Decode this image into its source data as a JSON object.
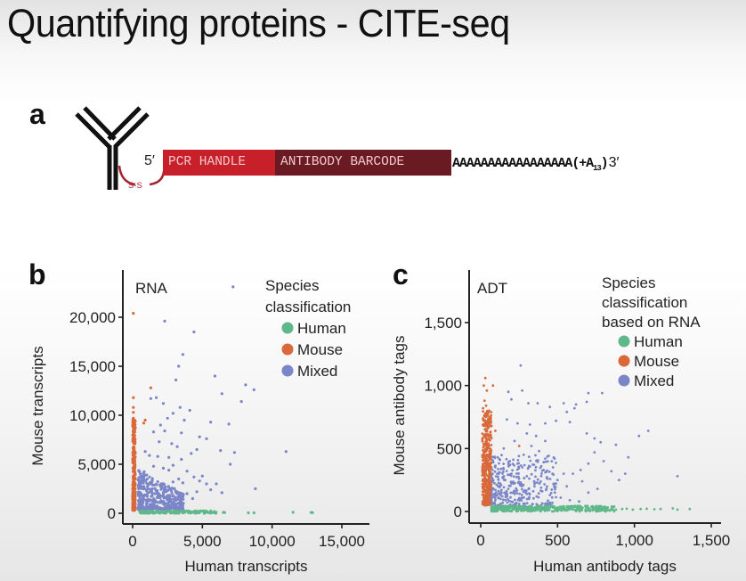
{
  "slide": {
    "title": "Quantifying proteins - CITE-seq"
  },
  "panel_a": {
    "letter": "a",
    "five_prime": "5′",
    "three_prime": "3′",
    "pcr_handle": "PCR HANDLE",
    "antibody_barcode": "ANTIBODY BARCODE",
    "poly_a": "AAAAAAAAAAAAAAAAA",
    "poly_a_extra": "(+A",
    "poly_a_sub": "13",
    "poly_a_close": ")",
    "disulfide": "S-S",
    "icons": [
      "antibody-icon",
      "disulfide-linker-icon"
    ],
    "colors": {
      "pcr_handle": "#c8202b",
      "barcode": "#6a1a22",
      "linker": "#a3242e"
    }
  },
  "chart_data": [
    {
      "type": "scatter",
      "panel_letter": "b",
      "title": "RNA",
      "xlabel": "Human transcripts",
      "ylabel": "Mouse transcripts",
      "xlim": [
        -700,
        16500
      ],
      "ylim": [
        -1200,
        24500
      ],
      "xticks": [
        0,
        5000,
        10000,
        15000
      ],
      "xtick_labels": [
        "0",
        "5,000",
        "10,000",
        "15,000"
      ],
      "yticks": [
        0,
        5000,
        10000,
        15000,
        20000
      ],
      "ytick_labels": [
        "0",
        "5,000",
        "10,000",
        "15,000",
        "20,000"
      ],
      "grid": false,
      "legend": {
        "title": [
          "Species",
          "classification"
        ],
        "position": "top-right",
        "entries": [
          {
            "label": "Human",
            "color": "#5fb88a"
          },
          {
            "label": "Mouse",
            "color": "#d9693a"
          },
          {
            "label": "Mixed",
            "color": "#7a86c8"
          }
        ]
      },
      "series": [
        {
          "name": "Human",
          "color": "#5fb88a",
          "points": [
            [
              11500,
              100
            ],
            [
              12800,
              80
            ],
            [
              12900,
              60
            ],
            [
              8300,
              50
            ],
            [
              8700,
              50
            ],
            [
              6500,
              90
            ],
            [
              6600,
              70
            ],
            [
              5200,
              60
            ],
            [
              5600,
              40
            ],
            [
              4800,
              70
            ]
          ]
        },
        {
          "name": "Mouse",
          "color": "#d9693a",
          "points": [
            [
              50,
              20400
            ],
            [
              1300,
              12800
            ],
            [
              50,
              11800
            ],
            [
              50,
              10800
            ],
            [
              50,
              10300
            ],
            [
              50,
              9700
            ],
            [
              800,
              9200
            ],
            [
              900,
              9500
            ],
            [
              50,
              8900
            ]
          ]
        },
        {
          "name": "Mixed",
          "color": "#7a86c8",
          "points": [
            [
              7200,
              23100
            ],
            [
              2300,
              19600
            ],
            [
              4400,
              18500
            ],
            [
              3600,
              16200
            ],
            [
              3300,
              15000
            ],
            [
              3100,
              13600
            ],
            [
              5900,
              14000
            ],
            [
              8100,
              13100
            ],
            [
              8700,
              12600
            ],
            [
              6400,
              12200
            ],
            [
              7800,
              11400
            ],
            [
              1300,
              11700
            ],
            [
              1700,
              11800
            ],
            [
              2200,
              11200
            ],
            [
              3400,
              10800
            ],
            [
              4100,
              10500
            ],
            [
              2900,
              10200
            ],
            [
              2500,
              9700
            ],
            [
              3700,
              9500
            ],
            [
              5600,
              9300
            ],
            [
              6900,
              9100
            ],
            [
              2000,
              9000
            ],
            [
              1500,
              8300
            ],
            [
              3500,
              8200
            ],
            [
              2300,
              8400
            ],
            [
              4800,
              7800
            ],
            [
              5300,
              7600
            ],
            [
              1900,
              7300
            ],
            [
              2800,
              7100
            ],
            [
              3200,
              6800
            ],
            [
              4600,
              6500
            ],
            [
              6300,
              6400
            ],
            [
              7300,
              6200
            ],
            [
              11000,
              6300
            ],
            [
              900,
              6300
            ],
            [
              1200,
              5900
            ],
            [
              1800,
              5800
            ],
            [
              2600,
              5700
            ],
            [
              3500,
              5500
            ],
            [
              4200,
              6100
            ],
            [
              7000,
              5000
            ],
            [
              2900,
              4900
            ],
            [
              1500,
              4800
            ],
            [
              2200,
              4600
            ],
            [
              2600,
              4400
            ],
            [
              3900,
              4300
            ],
            [
              5000,
              3800
            ],
            [
              4400,
              3700
            ],
            [
              3300,
              3500
            ],
            [
              2900,
              3200
            ],
            [
              3600,
              3100
            ],
            [
              4800,
              3300
            ],
            [
              5300,
              3000
            ],
            [
              6000,
              3000
            ],
            [
              8800,
              2500
            ],
            [
              6400,
              2100
            ],
            [
              5600,
              2400
            ],
            [
              4600,
              2200
            ],
            [
              3900,
              2000
            ],
            [
              3500,
              1700
            ],
            [
              4300,
              1500
            ],
            [
              2600,
              1300
            ],
            [
              1900,
              1100
            ],
            [
              1300,
              900
            ],
            [
              800,
              2600
            ],
            [
              700,
              1800
            ],
            [
              600,
              1200
            ],
            [
              1000,
              2300
            ],
            [
              1600,
              2000
            ],
            [
              2100,
              2800
            ],
            [
              1400,
              3300
            ],
            [
              900,
              3900
            ],
            [
              2400,
              2200
            ],
            [
              3000,
              2500
            ],
            [
              1800,
              1600
            ],
            [
              1100,
              1400
            ],
            [
              700,
              700
            ]
          ]
        }
      ]
    },
    {
      "type": "scatter",
      "panel_letter": "c",
      "title": "ADT",
      "xlabel": "Human antibody tags",
      "ylabel": "Mouse antibody tags",
      "xlim": [
        -45,
        1600
      ],
      "ylim": [
        -45,
        1790
      ],
      "xticks": [
        0,
        500,
        1000,
        1500
      ],
      "xtick_labels": [
        "0",
        "500",
        "1,000",
        "1,500"
      ],
      "yticks": [
        0,
        500,
        1000,
        1500
      ],
      "ytick_labels": [
        "0",
        "500",
        "1,000",
        "1,500"
      ],
      "grid": false,
      "legend": {
        "title": [
          "Species",
          "classification",
          "based on RNA"
        ],
        "position": "top-right",
        "entries": [
          {
            "label": "Human",
            "color": "#5fb88a"
          },
          {
            "label": "Mouse",
            "color": "#d9693a"
          },
          {
            "label": "Mixed",
            "color": "#7a86c8"
          }
        ]
      },
      "series": [
        {
          "name": "Human",
          "color": "#5fb88a",
          "points": [
            [
              1360,
              20
            ],
            [
              1280,
              15
            ],
            [
              1250,
              25
            ],
            [
              1170,
              20
            ],
            [
              1130,
              18
            ],
            [
              1080,
              22
            ],
            [
              1040,
              20
            ],
            [
              990,
              15
            ],
            [
              950,
              22
            ],
            [
              920,
              20
            ],
            [
              880,
              15
            ],
            [
              850,
              25
            ]
          ]
        },
        {
          "name": "Mouse",
          "color": "#d9693a",
          "points": [
            [
              30,
              1060
            ],
            [
              20,
              1000
            ],
            [
              80,
              1000
            ],
            [
              40,
              960
            ],
            [
              25,
              880
            ],
            [
              35,
              840
            ],
            [
              15,
              820
            ],
            [
              55,
              800
            ],
            [
              45,
              760
            ],
            [
              20,
              720
            ],
            [
              70,
              680
            ],
            [
              30,
              650
            ],
            [
              95,
              640
            ],
            [
              60,
              600
            ],
            [
              40,
              560
            ],
            [
              250,
              520
            ],
            [
              20,
              520
            ]
          ]
        },
        {
          "name": "Mixed",
          "color": "#7a86c8",
          "points": [
            [
              260,
              1160
            ],
            [
              180,
              950
            ],
            [
              270,
              960
            ],
            [
              200,
              890
            ],
            [
              310,
              860
            ],
            [
              370,
              860
            ],
            [
              450,
              830
            ],
            [
              540,
              860
            ],
            [
              620,
              850
            ],
            [
              700,
              940
            ],
            [
              790,
              940
            ],
            [
              610,
              820
            ],
            [
              560,
              790
            ],
            [
              690,
              870
            ],
            [
              170,
              730
            ],
            [
              240,
              700
            ],
            [
              320,
              690
            ],
            [
              420,
              700
            ],
            [
              490,
              720
            ],
            [
              580,
              710
            ],
            [
              690,
              620
            ],
            [
              740,
              580
            ],
            [
              780,
              550
            ],
            [
              880,
              530
            ],
            [
              1030,
              600
            ],
            [
              1090,
              640
            ],
            [
              1280,
              280
            ],
            [
              960,
              430
            ],
            [
              940,
              300
            ],
            [
              900,
              250
            ],
            [
              850,
              320
            ],
            [
              800,
              400
            ],
            [
              740,
              470
            ],
            [
              700,
              380
            ],
            [
              650,
              330
            ],
            [
              600,
              300
            ],
            [
              540,
              300
            ],
            [
              500,
              250
            ],
            [
              470,
              350
            ],
            [
              420,
              420
            ],
            [
              380,
              480
            ],
            [
              330,
              520
            ],
            [
              280,
              450
            ],
            [
              240,
              380
            ],
            [
              200,
              300
            ],
            [
              160,
              250
            ],
            [
              120,
              200
            ],
            [
              100,
              150
            ],
            [
              140,
              120
            ],
            [
              180,
              180
            ],
            [
              220,
              140
            ],
            [
              260,
              220
            ],
            [
              300,
              280
            ],
            [
              350,
              200
            ],
            [
              400,
              160
            ],
            [
              450,
              130
            ],
            [
              520,
              110
            ],
            [
              580,
              90
            ],
            [
              640,
              80
            ],
            [
              700,
              150
            ],
            [
              760,
              180
            ],
            [
              660,
              240
            ],
            [
              560,
              200
            ],
            [
              480,
              420
            ],
            [
              420,
              560
            ],
            [
              360,
              600
            ],
            [
              300,
              620
            ],
            [
              220,
              560
            ],
            [
              150,
              500
            ],
            [
              110,
              430
            ]
          ]
        }
      ]
    }
  ]
}
